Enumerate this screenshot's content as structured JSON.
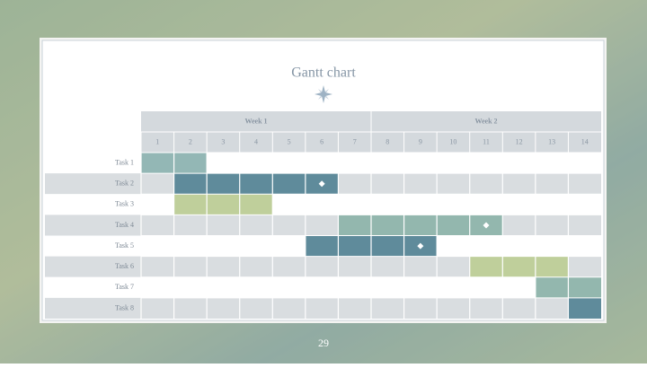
{
  "chart_data": {
    "type": "gantt",
    "title": "Gantt chart",
    "weeks": [
      "Week 1",
      "Week 2"
    ],
    "xlim": [
      1,
      14
    ],
    "xticks": [
      1,
      2,
      3,
      4,
      5,
      6,
      7,
      8,
      9,
      10,
      11,
      12,
      13,
      14
    ],
    "tasks": [
      {
        "name": "Task 1",
        "start": 1,
        "end": 2,
        "color": "#93b7b5"
      },
      {
        "name": "Task 2",
        "start": 2,
        "end": 6,
        "color": "#5f8b9b",
        "milestone": 6
      },
      {
        "name": "Task 3",
        "start": 2,
        "end": 4,
        "color": "#bfcf9b"
      },
      {
        "name": "Task 4",
        "start": 7,
        "end": 11,
        "color": "#93b7ae",
        "milestone": 11
      },
      {
        "name": "Task 5",
        "start": 6,
        "end": 9,
        "color": "#5f8b9b",
        "milestone": 9
      },
      {
        "name": "Task 6",
        "start": 11,
        "end": 13,
        "color": "#bfcf9b"
      },
      {
        "name": "Task 7",
        "start": 13,
        "end": 14,
        "color": "#93b7ae"
      },
      {
        "name": "Task 8",
        "start": 14,
        "end": 14,
        "color": "#5f8b9b"
      }
    ]
  },
  "slide_number": 29
}
